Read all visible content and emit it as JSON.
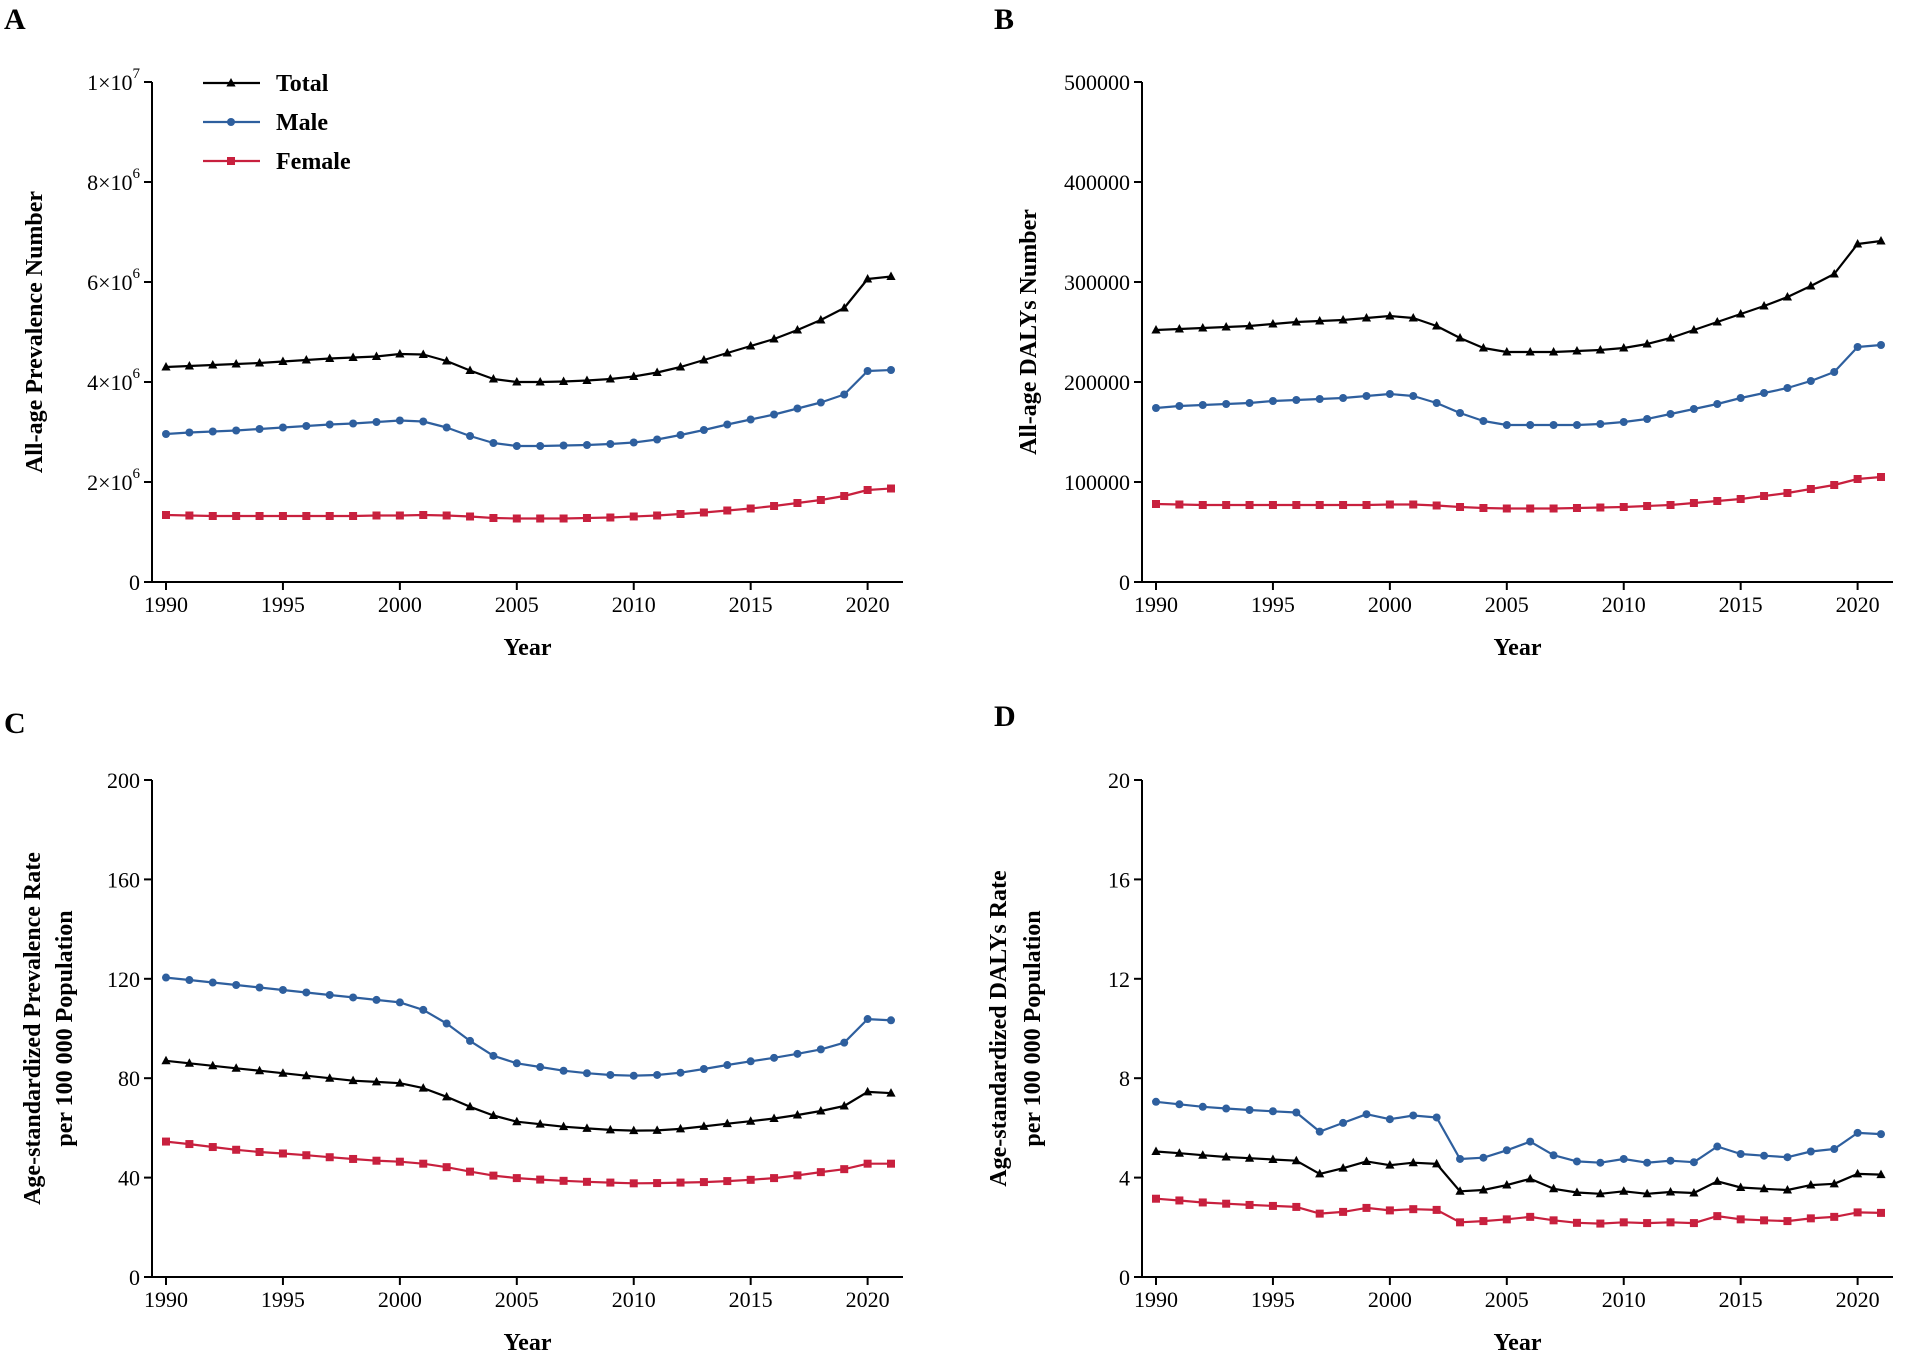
{
  "colors": {
    "total": "#000000",
    "male": "#2e5f9e",
    "female": "#c8203e"
  },
  "legend": [
    {
      "key": "total",
      "label": "Total",
      "marker": "triangle"
    },
    {
      "key": "male",
      "label": "Male",
      "marker": "circle"
    },
    {
      "key": "female",
      "label": "Female",
      "marker": "square"
    }
  ],
  "chart_data": [
    {
      "panel": "A",
      "type": "line",
      "xlabel": "Year",
      "ylabel": [
        "All-age Prevalence Number"
      ],
      "xlim": [
        1990,
        2021
      ],
      "xticks": [
        1990,
        1995,
        2000,
        2005,
        2010,
        2015,
        2020
      ],
      "ylim": [
        0,
        10000000
      ],
      "yticks": [
        {
          "value": 0,
          "base": "0",
          "exp": ""
        },
        {
          "value": 2000000,
          "base": "2×10",
          "exp": "6"
        },
        {
          "value": 4000000,
          "base": "4×10",
          "exp": "6"
        },
        {
          "value": 6000000,
          "base": "6×10",
          "exp": "6"
        },
        {
          "value": 8000000,
          "base": "8×10",
          "exp": "6"
        },
        {
          "value": 10000000,
          "base": "1×10",
          "exp": "7"
        }
      ],
      "legend": true,
      "x": [
        1990,
        1991,
        1992,
        1993,
        1994,
        1995,
        1996,
        1997,
        1998,
        1999,
        2000,
        2001,
        2002,
        2003,
        2004,
        2005,
        2006,
        2007,
        2008,
        2009,
        2010,
        2011,
        2012,
        2013,
        2014,
        2015,
        2016,
        2017,
        2018,
        2019,
        2020,
        2021
      ],
      "series": [
        {
          "name": "Total",
          "key": "total",
          "marker": "triangle",
          "values": [
            4300000,
            4320000,
            4340000,
            4360000,
            4380000,
            4410000,
            4440000,
            4470000,
            4490000,
            4510000,
            4560000,
            4550000,
            4420000,
            4230000,
            4060000,
            4000000,
            4000000,
            4010000,
            4030000,
            4060000,
            4110000,
            4190000,
            4300000,
            4440000,
            4580000,
            4720000,
            4860000,
            5040000,
            5240000,
            5480000,
            6060000,
            6110000
          ]
        },
        {
          "name": "Male",
          "key": "male",
          "marker": "circle",
          "values": [
            2960000,
            2990000,
            3010000,
            3030000,
            3060000,
            3090000,
            3120000,
            3150000,
            3170000,
            3200000,
            3230000,
            3210000,
            3090000,
            2920000,
            2780000,
            2720000,
            2720000,
            2730000,
            2740000,
            2760000,
            2790000,
            2850000,
            2940000,
            3040000,
            3150000,
            3250000,
            3350000,
            3470000,
            3590000,
            3750000,
            4220000,
            4240000
          ]
        },
        {
          "name": "Female",
          "key": "female",
          "marker": "square",
          "values": [
            1340000,
            1330000,
            1320000,
            1320000,
            1320000,
            1320000,
            1320000,
            1320000,
            1320000,
            1330000,
            1330000,
            1340000,
            1330000,
            1310000,
            1280000,
            1270000,
            1270000,
            1270000,
            1280000,
            1290000,
            1310000,
            1330000,
            1360000,
            1390000,
            1430000,
            1470000,
            1520000,
            1580000,
            1640000,
            1720000,
            1840000,
            1870000
          ]
        }
      ]
    },
    {
      "panel": "B",
      "type": "line",
      "xlabel": "Year",
      "ylabel": [
        "All-age DALYs Number"
      ],
      "xlim": [
        1990,
        2021
      ],
      "xticks": [
        1990,
        1995,
        2000,
        2005,
        2010,
        2015,
        2020
      ],
      "ylim": [
        0,
        500000
      ],
      "yticks": [
        {
          "value": 0,
          "base": "0",
          "exp": ""
        },
        {
          "value": 100000,
          "base": "100000",
          "exp": ""
        },
        {
          "value": 200000,
          "base": "200000",
          "exp": ""
        },
        {
          "value": 300000,
          "base": "300000",
          "exp": ""
        },
        {
          "value": 400000,
          "base": "400000",
          "exp": ""
        },
        {
          "value": 500000,
          "base": "500000",
          "exp": ""
        }
      ],
      "legend": false,
      "x": [
        1990,
        1991,
        1992,
        1993,
        1994,
        1995,
        1996,
        1997,
        1998,
        1999,
        2000,
        2001,
        2002,
        2003,
        2004,
        2005,
        2006,
        2007,
        2008,
        2009,
        2010,
        2011,
        2012,
        2013,
        2014,
        2015,
        2016,
        2017,
        2018,
        2019,
        2020,
        2021
      ],
      "series": [
        {
          "name": "Total",
          "key": "total",
          "marker": "triangle",
          "values": [
            252000,
            253000,
            254000,
            255000,
            256000,
            258000,
            260000,
            261000,
            262000,
            264000,
            266000,
            264000,
            256000,
            244000,
            234000,
            230000,
            230000,
            230000,
            231000,
            232000,
            234000,
            238000,
            244000,
            252000,
            260000,
            268000,
            276000,
            285000,
            296000,
            308000,
            338000,
            341000
          ]
        },
        {
          "name": "Male",
          "key": "male",
          "marker": "circle",
          "values": [
            174000,
            176000,
            177000,
            178000,
            179000,
            181000,
            182000,
            183000,
            184000,
            186000,
            188000,
            186000,
            179000,
            169000,
            161000,
            157000,
            157000,
            157000,
            157000,
            158000,
            160000,
            163000,
            168000,
            173000,
            178000,
            184000,
            189000,
            194000,
            201000,
            210000,
            235000,
            237000
          ]
        },
        {
          "name": "Female",
          "key": "female",
          "marker": "square",
          "values": [
            78000,
            77500,
            77000,
            77000,
            77000,
            77000,
            77000,
            77000,
            77000,
            77000,
            77500,
            77500,
            76500,
            75000,
            74000,
            73500,
            73500,
            73500,
            74000,
            74500,
            75000,
            76000,
            77000,
            79000,
            81000,
            83000,
            86000,
            89000,
            93000,
            97000,
            103000,
            105000
          ]
        }
      ]
    },
    {
      "panel": "C",
      "type": "line",
      "xlabel": "Year",
      "ylabel": [
        "Age-standardized Prevalence Rate",
        "per 100 000 Population"
      ],
      "xlim": [
        1990,
        2021
      ],
      "xticks": [
        1990,
        1995,
        2000,
        2005,
        2010,
        2015,
        2020
      ],
      "ylim": [
        0,
        200
      ],
      "yticks": [
        {
          "value": 0,
          "base": "0",
          "exp": ""
        },
        {
          "value": 40,
          "base": "40",
          "exp": ""
        },
        {
          "value": 80,
          "base": "80",
          "exp": ""
        },
        {
          "value": 120,
          "base": "120",
          "exp": ""
        },
        {
          "value": 160,
          "base": "160",
          "exp": ""
        },
        {
          "value": 200,
          "base": "200",
          "exp": ""
        }
      ],
      "legend": false,
      "x": [
        1990,
        1991,
        1992,
        1993,
        1994,
        1995,
        1996,
        1997,
        1998,
        1999,
        2000,
        2001,
        2002,
        2003,
        2004,
        2005,
        2006,
        2007,
        2008,
        2009,
        2010,
        2011,
        2012,
        2013,
        2014,
        2015,
        2016,
        2017,
        2018,
        2019,
        2020,
        2021
      ],
      "series": [
        {
          "name": "Total",
          "key": "total",
          "marker": "triangle",
          "values": [
            87,
            86,
            85,
            84,
            83,
            82,
            81,
            80,
            79,
            78.5,
            78,
            76,
            72.5,
            68.5,
            65,
            62.5,
            61.5,
            60.5,
            59.8,
            59.2,
            58.9,
            59,
            59.6,
            60.6,
            61.7,
            62.7,
            63.8,
            65.2,
            66.8,
            68.8,
            74.5,
            74
          ]
        },
        {
          "name": "Male",
          "key": "male",
          "marker": "circle",
          "values": [
            120.5,
            119.5,
            118.5,
            117.5,
            116.5,
            115.5,
            114.5,
            113.5,
            112.5,
            111.5,
            110.5,
            107.5,
            102,
            95,
            89,
            86,
            84.5,
            83,
            82,
            81.3,
            81,
            81.3,
            82.2,
            83.7,
            85.3,
            86.8,
            88.2,
            89.8,
            91.6,
            94.3,
            103.8,
            103.3
          ]
        },
        {
          "name": "Female",
          "key": "female",
          "marker": "square",
          "values": [
            54.5,
            53.5,
            52.3,
            51.2,
            50.3,
            49.7,
            49,
            48.2,
            47.5,
            46.8,
            46.4,
            45.6,
            44.2,
            42.4,
            40.8,
            39.8,
            39.2,
            38.7,
            38.3,
            38,
            37.7,
            37.8,
            38,
            38.2,
            38.6,
            39.1,
            39.8,
            40.9,
            42.2,
            43.4,
            45.6,
            45.6
          ]
        }
      ]
    },
    {
      "panel": "D",
      "type": "line",
      "xlabel": "Year",
      "ylabel": [
        "Age-standardized DALYs Rate",
        "per 100 000 Population"
      ],
      "xlim": [
        1990,
        2021
      ],
      "xticks": [
        1990,
        1995,
        2000,
        2005,
        2010,
        2015,
        2020
      ],
      "ylim": [
        0,
        20
      ],
      "yticks": [
        {
          "value": 0,
          "base": "0",
          "exp": ""
        },
        {
          "value": 4,
          "base": "4",
          "exp": ""
        },
        {
          "value": 8,
          "base": "8",
          "exp": ""
        },
        {
          "value": 12,
          "base": "12",
          "exp": ""
        },
        {
          "value": 16,
          "base": "16",
          "exp": ""
        },
        {
          "value": 20,
          "base": "20",
          "exp": ""
        }
      ],
      "legend": false,
      "x": [
        1990,
        1991,
        1992,
        1993,
        1994,
        1995,
        1996,
        1997,
        1998,
        1999,
        2000,
        2001,
        2002,
        2003,
        2004,
        2005,
        2006,
        2007,
        2008,
        2009,
        2010,
        2011,
        2012,
        2013,
        2014,
        2015,
        2016,
        2017,
        2018,
        2019,
        2020,
        2021
      ],
      "series": [
        {
          "name": "Total",
          "key": "total",
          "marker": "triangle",
          "values": [
            5.05,
            4.98,
            4.9,
            4.83,
            4.78,
            4.73,
            4.68,
            4.15,
            4.38,
            4.65,
            4.5,
            4.6,
            4.55,
            3.45,
            3.5,
            3.7,
            3.95,
            3.55,
            3.4,
            3.35,
            3.45,
            3.35,
            3.42,
            3.38,
            3.85,
            3.6,
            3.55,
            3.5,
            3.7,
            3.75,
            4.15,
            4.12
          ]
        },
        {
          "name": "Male",
          "key": "male",
          "marker": "circle",
          "values": [
            7.05,
            6.95,
            6.85,
            6.78,
            6.72,
            6.67,
            6.62,
            5.85,
            6.2,
            6.55,
            6.35,
            6.5,
            6.42,
            4.75,
            4.8,
            5.1,
            5.45,
            4.9,
            4.65,
            4.6,
            4.75,
            4.6,
            4.68,
            4.62,
            5.25,
            4.95,
            4.88,
            4.82,
            5.05,
            5.15,
            5.8,
            5.75
          ]
        },
        {
          "name": "Female",
          "key": "female",
          "marker": "square",
          "values": [
            3.15,
            3.08,
            3,
            2.95,
            2.9,
            2.86,
            2.82,
            2.55,
            2.62,
            2.78,
            2.68,
            2.73,
            2.7,
            2.2,
            2.25,
            2.32,
            2.42,
            2.28,
            2.18,
            2.15,
            2.2,
            2.17,
            2.2,
            2.17,
            2.45,
            2.32,
            2.28,
            2.25,
            2.36,
            2.42,
            2.6,
            2.58
          ]
        }
      ]
    }
  ]
}
